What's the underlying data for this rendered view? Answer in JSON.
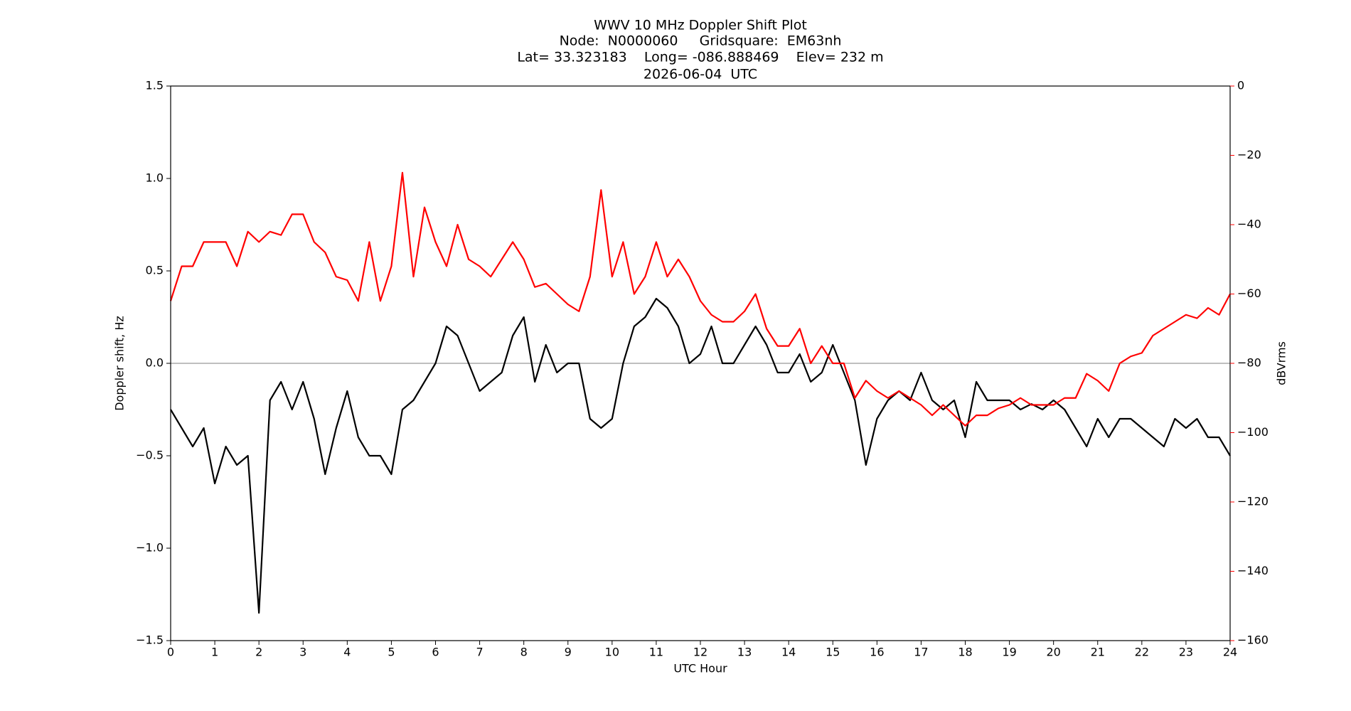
{
  "chart_data": {
    "type": "line",
    "title_lines": [
      "WWV 10 MHz Doppler Shift Plot",
      "Node:  N0000060     Gridsquare:  EM63nh",
      "Lat= 33.323183    Long= -086.888469    Elev= 232 m",
      "2026-06-04  UTC"
    ],
    "xlabel": "UTC Hour",
    "ylabel": "Doppler shift, Hz",
    "y2label": "dBVrms",
    "x": [
      0,
      0.25,
      0.5,
      0.75,
      1,
      1.25,
      1.5,
      1.75,
      2,
      2.25,
      2.5,
      2.75,
      3,
      3.25,
      3.5,
      3.75,
      4,
      4.25,
      4.5,
      4.75,
      5,
      5.25,
      5.5,
      5.75,
      6,
      6.25,
      6.5,
      6.75,
      7,
      7.25,
      7.5,
      7.75,
      8,
      8.25,
      8.5,
      8.75,
      9,
      9.25,
      9.5,
      9.75,
      10,
      10.25,
      10.5,
      10.75,
      11,
      11.25,
      11.5,
      11.75,
      12,
      12.25,
      12.5,
      12.75,
      13,
      13.25,
      13.5,
      13.75,
      14,
      14.25,
      14.5,
      14.75,
      15,
      15.25,
      15.5,
      15.75,
      16,
      16.25,
      16.5,
      16.75,
      17,
      17.25,
      17.5,
      17.75,
      18,
      18.25,
      18.5,
      18.75,
      19,
      19.25,
      19.5,
      19.75,
      20,
      20.25,
      20.5,
      20.75,
      21,
      21.25,
      21.5,
      21.75,
      22,
      22.25,
      22.5,
      22.75,
      23,
      23.25,
      23.5,
      23.75,
      24
    ],
    "series": [
      {
        "color": "#000000",
        "axis": "y",
        "values": [
          -0.25,
          -0.35,
          -0.45,
          -0.35,
          -0.65,
          -0.45,
          -0.55,
          -0.5,
          -1.35,
          -0.2,
          -0.1,
          -0.25,
          -0.1,
          -0.3,
          -0.6,
          -0.35,
          -0.15,
          -0.4,
          -0.5,
          -0.5,
          -0.6,
          -0.25,
          -0.2,
          -0.1,
          0.0,
          0.2,
          0.15,
          0.0,
          -0.15,
          -0.1,
          -0.05,
          0.15,
          0.25,
          -0.1,
          0.1,
          -0.05,
          0.0,
          0.0,
          -0.3,
          -0.35,
          -0.3,
          0.0,
          0.2,
          0.25,
          0.35,
          0.3,
          0.2,
          0.0,
          0.05,
          0.2,
          0.0,
          0.0,
          0.1,
          0.2,
          0.1,
          -0.05,
          -0.05,
          0.05,
          -0.1,
          -0.05,
          0.1,
          -0.05,
          -0.2,
          -0.55,
          -0.3,
          -0.2,
          -0.15,
          -0.2,
          -0.05,
          -0.2,
          -0.25,
          -0.2,
          -0.4,
          -0.1,
          -0.2,
          -0.2,
          -0.2,
          -0.25,
          -0.22,
          -0.25,
          -0.2,
          -0.25,
          -0.35,
          -0.45,
          -0.3,
          -0.4,
          -0.3,
          -0.3,
          -0.35,
          -0.4,
          -0.45,
          -0.3,
          -0.35,
          -0.3,
          -0.4,
          -0.4,
          -0.5
        ]
      },
      {
        "color": "#ff0000",
        "axis": "y2",
        "values": [
          -62,
          -52,
          -52,
          -45,
          -45,
          -45,
          -52,
          -42,
          -45,
          -42,
          -43,
          -37,
          -37,
          -45,
          -48,
          -55,
          -56,
          -62,
          -45,
          -62,
          -52,
          -25,
          -55,
          -35,
          -45,
          -52,
          -40,
          -50,
          -52,
          -55,
          -50,
          -45,
          -50,
          -58,
          -57,
          -60,
          -63,
          -65,
          -55,
          -30,
          -55,
          -45,
          -60,
          -55,
          -45,
          -55,
          -50,
          -55,
          -62,
          -66,
          -68,
          -68,
          -65,
          -60,
          -70,
          -75,
          -75,
          -70,
          -80,
          -75,
          -80,
          -80,
          -90,
          -85,
          -88,
          -90,
          -88,
          -90,
          -92,
          -95,
          -92,
          -95,
          -98,
          -95,
          -95,
          -93,
          -92,
          -90,
          -92,
          -92,
          -92,
          -90,
          -90,
          -83,
          -85,
          -88,
          -80,
          -78,
          -77,
          -72,
          -70,
          -68,
          -66,
          -67,
          -64,
          -66,
          -60
        ]
      }
    ],
    "axhline": 0,
    "xlim": [
      0,
      24
    ],
    "xticks": [
      0,
      1,
      2,
      3,
      4,
      5,
      6,
      7,
      8,
      9,
      10,
      11,
      12,
      13,
      14,
      15,
      16,
      17,
      18,
      19,
      20,
      21,
      22,
      23,
      24
    ],
    "ylim": [
      -1.5,
      1.5
    ],
    "yticks": [
      {
        "value": -1.5,
        "label": "−1.5"
      },
      {
        "value": -1.0,
        "label": "−1.0"
      },
      {
        "value": -0.5,
        "label": "−0.5"
      },
      {
        "value": 0,
        "label": "0.0"
      },
      {
        "value": 0.5,
        "label": "0.5"
      },
      {
        "value": 1.0,
        "label": "1.0"
      },
      {
        "value": 1.5,
        "label": "1.5"
      }
    ],
    "y2lim": [
      -160,
      0
    ],
    "y2ticks": [
      {
        "value": -160,
        "label": "−160"
      },
      {
        "value": -140,
        "label": "−140"
      },
      {
        "value": -120,
        "label": "−120"
      },
      {
        "value": -100,
        "label": "−100"
      },
      {
        "value": -80,
        "label": "−80"
      },
      {
        "value": -60,
        "label": "−60"
      },
      {
        "value": -40,
        "label": "−40"
      },
      {
        "value": -20,
        "label": "−20"
      },
      0
    ],
    "y2color": "#ff0000"
  }
}
